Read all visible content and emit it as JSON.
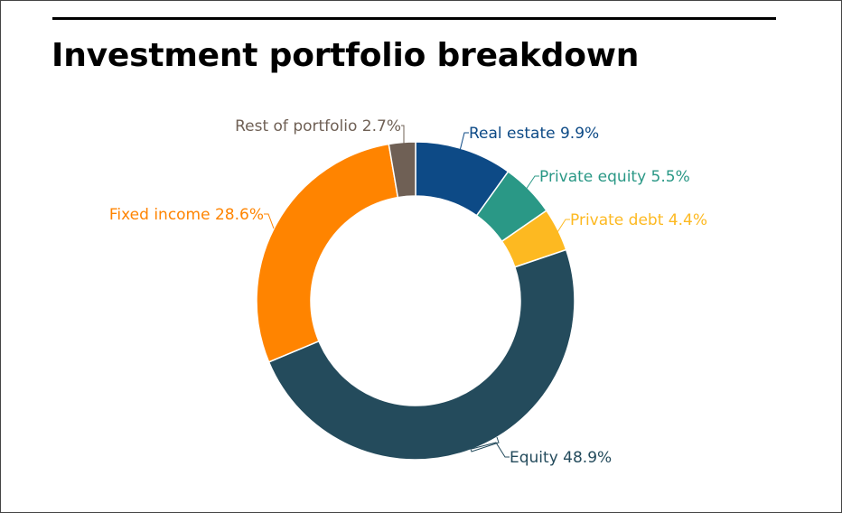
{
  "chart_data": {
    "type": "pie",
    "title": "Investment portfolio breakdown",
    "donut": true,
    "slices": [
      {
        "name": "Real estate",
        "value": 9.9,
        "label": "Real estate 9.9%",
        "color": "#0d4a86"
      },
      {
        "name": "Private equity",
        "value": 5.5,
        "label": "Private equity 5.5%",
        "color": "#2a9886"
      },
      {
        "name": "Private debt",
        "value": 4.4,
        "label": "Private debt 4.4%",
        "color": "#fdb921"
      },
      {
        "name": "Equity",
        "value": 48.9,
        "label": "Equity 48.9%",
        "color": "#244b5c"
      },
      {
        "name": "Fixed income",
        "value": 28.6,
        "label": "Fixed income 28.6%",
        "color": "#ff8400"
      },
      {
        "name": "Rest of portfolio",
        "value": 2.7,
        "label": "Rest of portfolio 2.7%",
        "color": "#6f6055"
      }
    ],
    "label_colors": [
      "#0d4a86",
      "#2a9886",
      "#fdb921",
      "#244b5c",
      "#ff8400",
      "#6f6055"
    ]
  }
}
